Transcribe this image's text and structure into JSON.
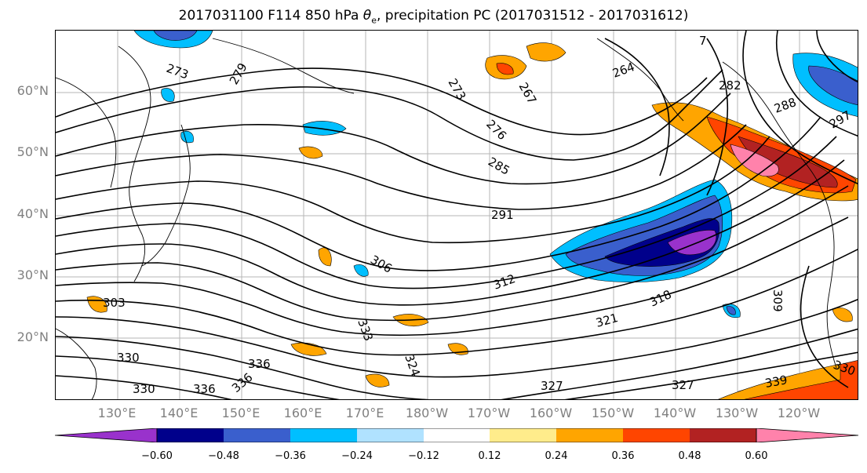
{
  "title": "2017031100 F114 850 hPa θe, precipitation PC (2017031512 - 2017031612)",
  "title_parts": {
    "prefix": "2017031100 F114 850 hPa ",
    "theta": "θ",
    "sub": "e",
    "suffix": ", precipitation PC (2017031512 - 2017031612)"
  },
  "lat_labels": [
    "60°N",
    "50°N",
    "40°N",
    "30°N",
    "20°N"
  ],
  "lon_labels": [
    "130°E",
    "140°E",
    "150°E",
    "160°E",
    "170°E",
    "180°W",
    "170°W",
    "160°W",
    "150°W",
    "140°W",
    "130°W",
    "120°W"
  ],
  "contour_labels": [
    "273",
    "279",
    "273",
    "267",
    "276",
    "285",
    "264",
    "282",
    "288",
    "297",
    "291",
    "306",
    "309",
    "312",
    "318",
    "321",
    "303",
    "330",
    "333",
    "336",
    "330",
    "336",
    "324",
    "327",
    "327",
    "339",
    "330",
    "336",
    "7"
  ],
  "colorbar": {
    "colors": [
      "#9932cc",
      "#00008b",
      "#3a5fcd",
      "#00bfff",
      "#b0e2ff",
      "#ffffff",
      "#ffec8b",
      "#ffa500",
      "#ff4500",
      "#b22222",
      "#ff82ab"
    ],
    "tick_labels": [
      "−0.60",
      "−0.48",
      "−0.36",
      "−0.24",
      "−0.12",
      "0.12",
      "0.24",
      "0.36",
      "0.48",
      "0.60"
    ]
  }
}
